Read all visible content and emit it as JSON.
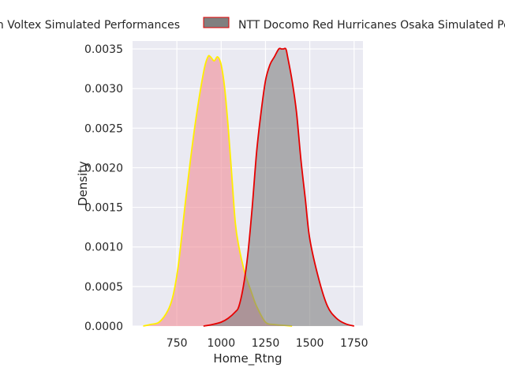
{
  "chart_data": {
    "type": "area",
    "title": "",
    "xlabel": "Home_Rtng",
    "ylabel": "Density",
    "xlim": [
      500,
      1800
    ],
    "ylim": [
      0,
      0.0036
    ],
    "x_ticks": [
      750,
      1000,
      1250,
      1500,
      1750
    ],
    "x_tick_labels": [
      "750",
      "1000",
      "1250",
      "1500",
      "1750"
    ],
    "y_ticks": [
      0,
      0.0005,
      0.001,
      0.0015,
      0.002,
      0.0025,
      0.003,
      0.0035
    ],
    "y_tick_labels": [
      "0.0000",
      "0.0005",
      "0.0010",
      "0.0015",
      "0.0020",
      "0.0025",
      "0.0030",
      "0.0035"
    ],
    "grid": true,
    "legend_placement": "top",
    "series": [
      {
        "name": "en Voltex Simulated Performances",
        "line_color": "#ffee00",
        "fill_color": "#f08c96",
        "fill_opacity": 0.6,
        "x": [
          560,
          600,
          650,
          700,
          730,
          760,
          800,
          850,
          900,
          925,
          940,
          960,
          980,
          1000,
          1020,
          1040,
          1060,
          1080,
          1100,
          1130,
          1150,
          1175,
          1200,
          1250,
          1300,
          1350,
          1400
        ],
        "y": [
          0,
          2e-05,
          5e-05,
          0.0002,
          0.0004,
          0.0008,
          0.0016,
          0.0025,
          0.0032,
          0.0034,
          0.0034,
          0.00335,
          0.0034,
          0.0033,
          0.003,
          0.0025,
          0.0019,
          0.0013,
          0.001,
          0.0007,
          0.00056,
          0.0004,
          0.00025,
          5e-05,
          2e-05,
          1e-05,
          0
        ]
      },
      {
        "name": "NTT Docomo Red Hurricanes Osaka Simulated Performances",
        "line_color": "#e60000",
        "fill_color": "#808080",
        "fill_opacity": 0.6,
        "x": [
          900,
          950,
          1000,
          1040,
          1080,
          1100,
          1125,
          1150,
          1175,
          1200,
          1225,
          1250,
          1275,
          1300,
          1325,
          1340,
          1350,
          1365,
          1375,
          1400,
          1425,
          1450,
          1475,
          1500,
          1550,
          1600,
          1650,
          1700,
          1750
        ],
        "y": [
          0,
          2e-05,
          5e-05,
          0.0001,
          0.00018,
          0.00025,
          0.0005,
          0.0009,
          0.0015,
          0.0022,
          0.0027,
          0.0031,
          0.0033,
          0.0034,
          0.0035,
          0.0035,
          0.0035,
          0.0035,
          0.0034,
          0.0031,
          0.0027,
          0.0021,
          0.0016,
          0.0011,
          0.0006,
          0.00025,
          0.0001,
          3e-05,
          0
        ]
      }
    ]
  }
}
